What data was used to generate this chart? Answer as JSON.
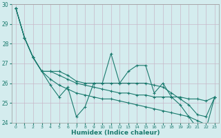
{
  "xlabel": "Humidex (Indice chaleur)",
  "background_color": "#d4ecee",
  "grid_color": "#c8b8c8",
  "line_color": "#1a7a6e",
  "x": [
    0,
    1,
    2,
    3,
    4,
    5,
    6,
    7,
    8,
    9,
    10,
    11,
    12,
    13,
    14,
    15,
    16,
    17,
    18,
    19,
    20,
    21,
    22,
    23
  ],
  "y_main": [
    29.8,
    28.3,
    27.3,
    26.6,
    25.9,
    25.3,
    25.8,
    24.3,
    24.8,
    26.0,
    26.0,
    27.5,
    26.0,
    26.6,
    26.9,
    26.9,
    25.5,
    26.0,
    25.3,
    24.9,
    24.3,
    23.7,
    23.7,
    25.3
  ],
  "y_upper": [
    29.8,
    28.3,
    27.3,
    26.6,
    26.6,
    26.4,
    26.2,
    26.0,
    25.9,
    25.8,
    25.7,
    25.6,
    25.5,
    25.5,
    25.4,
    25.4,
    25.3,
    25.3,
    25.3,
    25.3,
    25.2,
    25.2,
    25.1,
    25.3
  ],
  "y_lower": [
    29.8,
    28.3,
    27.3,
    26.6,
    26.2,
    25.9,
    25.7,
    25.5,
    25.4,
    25.3,
    25.2,
    25.2,
    25.1,
    25.0,
    24.9,
    24.8,
    24.7,
    24.6,
    24.5,
    24.4,
    24.3,
    24.1,
    23.9,
    23.8
  ],
  "y_trend": [
    29.8,
    28.3,
    27.3,
    26.6,
    26.6,
    26.6,
    26.4,
    26.1,
    26.0,
    26.0,
    26.0,
    26.0,
    26.0,
    26.0,
    26.0,
    26.0,
    25.9,
    25.8,
    25.5,
    25.2,
    24.9,
    24.4,
    24.3,
    25.3
  ],
  "ylim": [
    24.0,
    30.0
  ],
  "xlim_min": -0.5,
  "xlim_max": 23.5,
  "yticks": [
    24,
    25,
    26,
    27,
    28,
    29,
    30
  ]
}
